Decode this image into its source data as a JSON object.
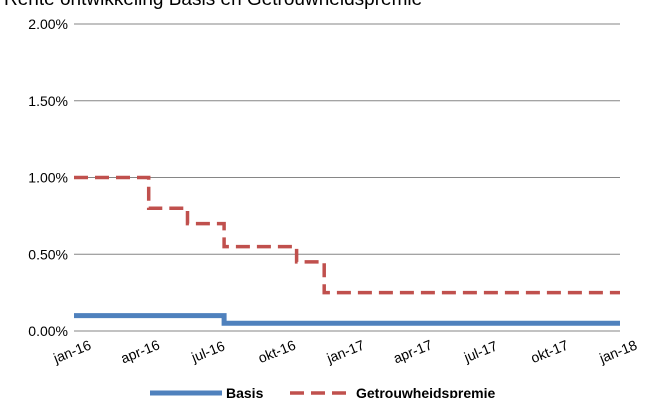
{
  "chart_data": {
    "type": "line",
    "title_cut_off": "Rente ontwikkeling Basis en Getrouwheidspremie",
    "ylim": [
      0,
      2.0
    ],
    "yticks": [
      "2.00%",
      "1.50%",
      "1.00%",
      "0.50%",
      "0.00%"
    ],
    "ytick_values": [
      2.0,
      1.5,
      1.0,
      0.5,
      0.0
    ],
    "xticks": [
      "jan-16",
      "apr-16",
      "jul-16",
      "okt-16",
      "jan-17",
      "apr-17",
      "jul-17",
      "okt-17",
      "jan-18"
    ],
    "xtick_dates": [
      "2016-01-01",
      "2016-04-01",
      "2016-07-01",
      "2016-10-01",
      "2017-01-01",
      "2017-04-01",
      "2017-07-01",
      "2017-10-01",
      "2018-01-01"
    ],
    "x_range": [
      "2016-01-01",
      "2018-01-01"
    ],
    "grid": true,
    "legend_position": "bottom",
    "series": [
      {
        "name": "Basis",
        "color": "#4f81bd",
        "style": "solid",
        "points": [
          {
            "x": "2016-01-01",
            "y": 0.1
          },
          {
            "x": "2016-07-20",
            "y": 0.1
          },
          {
            "x": "2016-07-20",
            "y": 0.05
          },
          {
            "x": "2018-01-01",
            "y": 0.05
          }
        ]
      },
      {
        "name": "Getrouwheidspremie",
        "color": "#c0504d",
        "style": "dashed",
        "points": [
          {
            "x": "2016-01-01",
            "y": 1.0
          },
          {
            "x": "2016-04-10",
            "y": 1.0
          },
          {
            "x": "2016-04-10",
            "y": 0.8
          },
          {
            "x": "2016-06-01",
            "y": 0.8
          },
          {
            "x": "2016-06-01",
            "y": 0.7
          },
          {
            "x": "2016-07-20",
            "y": 0.7
          },
          {
            "x": "2016-07-20",
            "y": 0.55
          },
          {
            "x": "2016-10-25",
            "y": 0.55
          },
          {
            "x": "2016-10-25",
            "y": 0.45
          },
          {
            "x": "2016-12-01",
            "y": 0.45
          },
          {
            "x": "2016-12-01",
            "y": 0.25
          },
          {
            "x": "2018-01-01",
            "y": 0.25
          }
        ]
      }
    ]
  }
}
